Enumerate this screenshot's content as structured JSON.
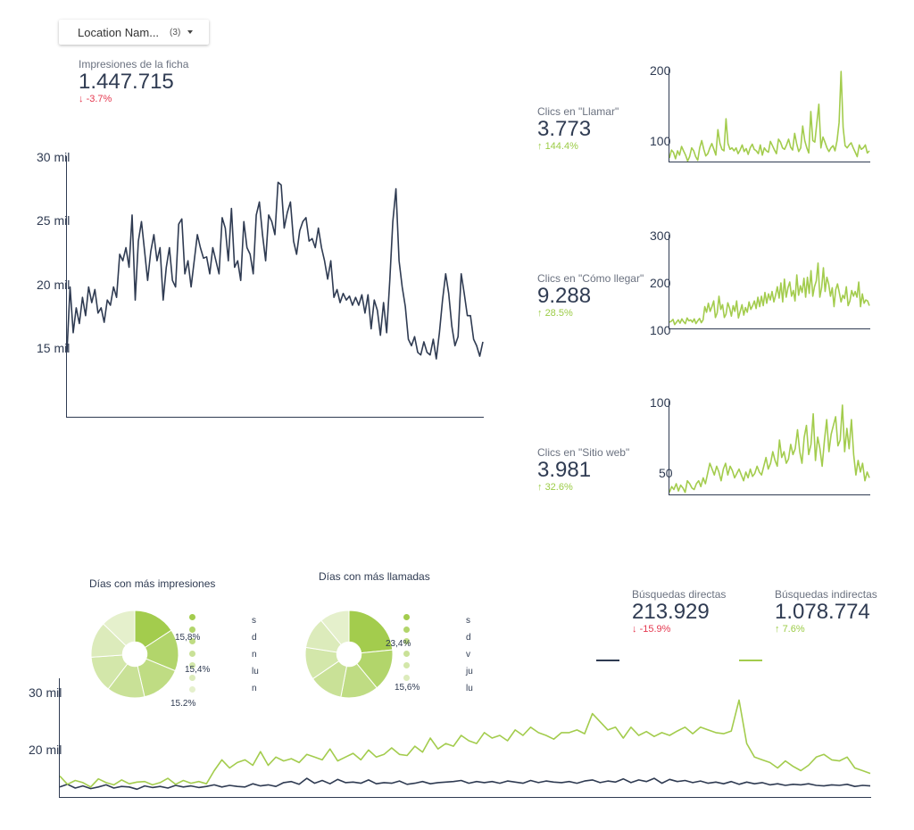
{
  "filter": {
    "label": "Location Nam...",
    "count": "(3)"
  },
  "scorecards": {
    "impressions": {
      "title": "Impresiones de la ficha",
      "value": "1.447.715",
      "delta": "-3.7%"
    },
    "calls": {
      "title": "Clics en \"Llamar\"",
      "value": "3.773",
      "delta": "144.4%"
    },
    "directions": {
      "title": "Clics en \"Cómo llegar\"",
      "value": "9.288",
      "delta": "28.5%"
    },
    "website": {
      "title": "Clics en \"Sitio web\"",
      "value": "3.981",
      "delta": "32.6%"
    },
    "direct": {
      "title": "Búsquedas directas",
      "value": "213.929",
      "delta": "-15.9%"
    },
    "indirect": {
      "title": "Búsquedas indirectas",
      "value": "1.078.774",
      "delta": "7.6%"
    }
  },
  "icons": {
    "down": "arrow-down-icon",
    "up": "arrow-up-icon",
    "dropdown": "caret-down-icon"
  },
  "colors": {
    "dark": "#2f3b52",
    "green": "#a3cc4d",
    "neg": "#e53950",
    "pos": "#9ccc47"
  },
  "pies": {
    "impressions": {
      "title": "Días con más impresiones",
      "labels": [
        "15,8%",
        "15,4%",
        "15,2%"
      ],
      "legend_initials": [
        "s",
        "d",
        "n",
        "lu",
        "n"
      ]
    },
    "calls": {
      "title": "Días con más llamadas",
      "labels": [
        "23,4%",
        "15,6%"
      ],
      "legend_initials": [
        "s",
        "d",
        "v",
        "ju",
        "lu"
      ]
    }
  },
  "chart_data": [
    {
      "type": "line",
      "id": "impressions",
      "yticks": [
        "30 mil",
        "25 mil",
        "20 mil",
        "15 mil"
      ],
      "ylim": [
        10000,
        30000
      ],
      "series": [
        {
          "values": [
            15000,
            20000,
            16500,
            18400,
            17200,
            19200,
            17800,
            20000,
            18800,
            19800,
            18000,
            18400,
            17300,
            19000,
            18600,
            20000,
            19200,
            22500,
            22000,
            23000,
            21500,
            25500,
            19000,
            23500,
            25000,
            22800,
            20500,
            22700,
            24000,
            22000,
            23000,
            19000,
            21500,
            23000,
            20500,
            20000,
            24800,
            25200,
            21000,
            22000,
            20000,
            22000,
            24000,
            23000,
            22200,
            22300,
            21000,
            23000,
            22000,
            21000,
            25300,
            24500,
            22000,
            26000,
            21500,
            22000,
            20500,
            25000,
            23000,
            22500,
            21000,
            25500,
            26500,
            24000,
            22000,
            25500,
            25000,
            24000,
            28000,
            27800,
            24500,
            25700,
            26500,
            23500,
            22500,
            24300,
            25000,
            25300,
            23500,
            23700,
            23000,
            24500,
            23000,
            22000,
            20600,
            22000,
            19200,
            19800,
            18800,
            19500,
            19000,
            19300,
            18600,
            19200,
            18600,
            19400,
            18000,
            19400,
            16800,
            19000,
            18200,
            16300,
            18800,
            16500,
            20500,
            25000,
            27500,
            22000,
            20000,
            18500,
            16000,
            15500,
            16200,
            15000,
            14800,
            15800,
            15000,
            14800,
            16000,
            14500,
            16500,
            19000,
            21000,
            19500,
            17000,
            15500,
            16200,
            21000,
            19500,
            17800,
            17800,
            16000,
            15500,
            14700,
            15800
          ]
        }
      ]
    },
    {
      "type": "line",
      "id": "calls",
      "yticks": [
        "200",
        "100"
      ],
      "ylim": [
        80,
        210
      ],
      "series": [
        {
          "values": [
            86,
            97,
            94,
            85,
            96,
            90,
            102,
            96,
            90,
            82,
            88,
            100,
            96,
            88,
            83,
            100,
            110,
            98,
            89,
            92,
            100,
            106,
            98,
            90,
            125,
            106,
            98,
            96,
            140,
            106,
            98,
            100,
            96,
            100,
            92,
            97,
            104,
            95,
            99,
            91,
            100,
            105,
            98,
            96,
            92,
            104,
            90,
            100,
            96,
            94,
            109,
            103,
            97,
            92,
            112,
            108,
            100,
            98,
            104,
            112,
            101,
            97,
            120,
            106,
            95,
            100,
            130,
            110,
            100,
            93,
            150,
            110,
            108,
            135,
            160,
            100,
            115,
            108,
            100,
            95,
            100,
            103,
            96,
            110,
            135,
            205,
            128,
            103,
            100,
            104,
            107,
            100,
            94,
            88,
            104,
            98,
            100,
            104,
            93,
            96
          ]
        }
      ]
    },
    {
      "type": "line",
      "id": "directions",
      "yticks": [
        "300",
        "200",
        "100"
      ],
      "ylim": [
        100,
        300
      ],
      "series": [
        {
          "values": [
            115,
            117,
            121,
            110,
            115,
            120,
            113,
            122,
            116,
            112,
            124,
            118,
            120,
            115,
            122,
            112,
            118,
            123,
            114,
            120,
            148,
            136,
            155,
            138,
            148,
            160,
            125,
            135,
            170,
            142,
            152,
            125,
            132,
            156,
            145,
            128,
            150,
            138,
            160,
            124,
            138,
            152,
            130,
            146,
            136,
            158,
            142,
            150,
            160,
            144,
            168,
            148,
            170,
            150,
            178,
            155,
            175,
            162,
            180,
            158,
            172,
            190,
            166,
            198,
            158,
            206,
            168,
            188,
            200,
            170,
            182,
            160,
            215,
            172,
            192,
            178,
            208,
            168,
            210,
            176,
            224,
            170,
            190,
            202,
            240,
            168,
            188,
            230,
            180,
            210,
            196,
            170,
            188,
            148,
            184,
            196,
            178,
            158,
            172,
            165,
            190,
            150,
            160,
            182,
            170,
            180,
            168,
            200,
            148,
            175,
            155,
            162,
            160,
            150
          ]
        }
      ]
    },
    {
      "type": "line",
      "id": "website",
      "yticks": [
        "100",
        "50"
      ],
      "ylim": [
        40,
        105
      ],
      "series": [
        {
          "values": [
            42,
            46,
            44,
            48,
            43,
            47,
            45,
            42,
            50,
            48,
            45,
            44,
            48,
            50,
            46,
            52,
            48,
            55,
            62,
            58,
            54,
            60,
            56,
            50,
            58,
            62,
            54,
            60,
            57,
            52,
            55,
            58,
            54,
            50,
            56,
            52,
            58,
            53,
            55,
            60,
            56,
            54,
            60,
            66,
            58,
            62,
            70,
            64,
            60,
            78,
            66,
            70,
            62,
            65,
            75,
            68,
            72,
            85,
            70,
            62,
            80,
            88,
            68,
            75,
            96,
            64,
            80,
            72,
            60,
            78,
            92,
            70,
            82,
            88,
            94,
            74,
            78,
            102,
            70,
            86,
            72,
            92,
            68,
            54,
            64,
            56,
            62,
            50,
            56,
            52
          ]
        }
      ]
    },
    {
      "type": "pie",
      "id": "impressions-days",
      "slices": [
        15.8,
        15.4,
        15.2,
        14,
        13.5,
        13.3,
        12.8
      ]
    },
    {
      "type": "pie",
      "id": "calls-days",
      "slices": [
        23.4,
        15.6,
        14,
        12.5,
        12,
        11.5,
        11
      ]
    },
    {
      "type": "line",
      "id": "searches",
      "yticks": [
        "30 mil",
        "20 mil"
      ],
      "ylim": [
        10000,
        32000
      ],
      "series": [
        {
          "values": [
            12000,
            12500,
            11800,
            12200,
            11700,
            12000,
            12400,
            11800,
            12100,
            12000,
            11600,
            12200,
            11900,
            12100,
            11800,
            12300,
            12000,
            12200,
            11900,
            12100,
            12400,
            12000,
            12300,
            12100,
            12000,
            12600,
            12200,
            12400,
            12100,
            12800,
            13000,
            12500,
            13600,
            12700,
            13200,
            12600,
            13400,
            12800,
            12900,
            12700,
            13300,
            12600,
            12800,
            12700,
            13100,
            12500,
            12700,
            13000,
            12600,
            12800,
            12900,
            13000,
            13200,
            12700,
            13000,
            12800,
            13000,
            12700,
            13100,
            12900,
            12700,
            13200,
            12800,
            13100,
            12900,
            12800,
            13000,
            12700,
            13100,
            13300,
            12800,
            13100,
            12900,
            13500,
            12800,
            13300,
            13000,
            13600,
            12700,
            13400,
            13000,
            13200,
            12800,
            13100,
            12700,
            12900,
            12600,
            13000,
            12500,
            12900,
            12600,
            12800,
            12400,
            12600,
            12300,
            12500,
            12400,
            12600,
            12300,
            12200,
            12400,
            12300,
            12500,
            12100,
            12300,
            12200
          ]
        },
        {
          "values": [
            14000,
            12500,
            13200,
            12800,
            12000,
            13500,
            12800,
            12400,
            13300,
            12600,
            12900,
            13000,
            12400,
            12800,
            13600,
            12500,
            13200,
            12700,
            13000,
            12600,
            15000,
            17000,
            15500,
            16500,
            17000,
            16000,
            18500,
            16000,
            17500,
            16800,
            17200,
            16500,
            18000,
            17500,
            17000,
            19000,
            16800,
            17500,
            18200,
            17000,
            18800,
            17500,
            18000,
            19200,
            18000,
            17800,
            19500,
            18400,
            21000,
            19000,
            20000,
            19500,
            21500,
            20500,
            20000,
            22000,
            21000,
            21500,
            20500,
            22500,
            21500,
            23000,
            22000,
            21500,
            20800,
            22000,
            22000,
            22500,
            21800,
            25500,
            24000,
            22500,
            23000,
            21000,
            23000,
            21500,
            22200,
            21300,
            22000,
            21500,
            22300,
            23000,
            21800,
            23000,
            22500,
            22000,
            21800,
            22300,
            28000,
            20000,
            17500,
            17000,
            16500,
            15500,
            16800,
            15800,
            15000,
            16000,
            17500,
            18000,
            17000,
            16800,
            17500,
            15500,
            15000,
            14500
          ]
        }
      ]
    }
  ]
}
